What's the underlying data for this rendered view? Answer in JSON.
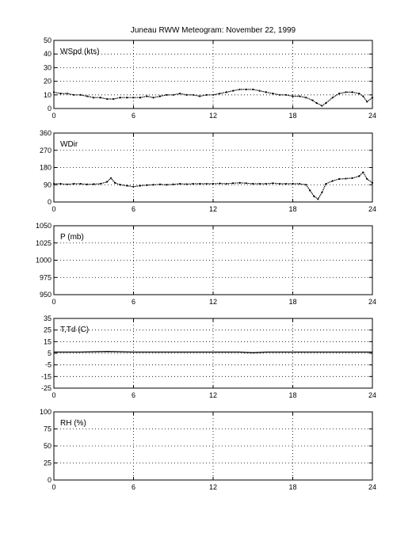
{
  "title": "Juneau RWW Meteogram:  November 22, 1999",
  "chart_data": [
    {
      "type": "scatter",
      "label": "WSpd (kts)",
      "xlim": [
        0,
        24
      ],
      "ylim": [
        0,
        50
      ],
      "xticks": [
        0,
        6,
        12,
        18,
        24
      ],
      "yticks": [
        0,
        10,
        20,
        30,
        40,
        50
      ],
      "grid": true,
      "series": [
        {
          "x": [
            0,
            0.5,
            1,
            1.5,
            2,
            2.5,
            3,
            3.5,
            4,
            4.5,
            5,
            5.5,
            6,
            6.5,
            7,
            7.5,
            8,
            8.5,
            9,
            9.5,
            10,
            10.5,
            11,
            11.5,
            12,
            12.5,
            13,
            13.5,
            14,
            14.5,
            15,
            15.5,
            16,
            16.5,
            17,
            17.5,
            18,
            18.5,
            19,
            19.5,
            19.8,
            20.2,
            20.5,
            21,
            21.5,
            22,
            22.5,
            23,
            23.3,
            23.6,
            24
          ],
          "y": [
            12,
            11,
            11,
            10,
            10,
            9,
            8,
            8,
            7,
            7,
            8,
            8,
            8,
            8,
            9,
            8,
            9,
            10,
            10,
            11,
            10,
            10,
            9,
            10,
            10,
            11,
            12,
            13,
            14,
            14,
            14,
            13,
            12,
            11,
            10,
            10,
            9,
            9,
            8,
            6,
            4,
            2,
            4,
            8,
            11,
            12,
            12,
            11,
            9,
            5,
            8
          ]
        }
      ]
    },
    {
      "type": "scatter",
      "label": "WDir",
      "xlim": [
        0,
        24
      ],
      "ylim": [
        0,
        360
      ],
      "xticks": [
        0,
        6,
        12,
        18,
        24
      ],
      "yticks": [
        0,
        90,
        180,
        270,
        360
      ],
      "grid": true,
      "series": [
        {
          "x": [
            0,
            0.5,
            1,
            1.5,
            2,
            2.5,
            3,
            3.5,
            4,
            4.3,
            4.6,
            5,
            5.5,
            6,
            6.5,
            7,
            7.5,
            8,
            8.5,
            9,
            9.5,
            10,
            10.5,
            11,
            11.5,
            12,
            12.5,
            13,
            13.5,
            14,
            14.5,
            15,
            15.5,
            16,
            16.5,
            17,
            17.5,
            18,
            18.5,
            19,
            19.3,
            19.6,
            19.9,
            20.2,
            20.5,
            21,
            21.5,
            22,
            22.5,
            23,
            23.3,
            23.6,
            24
          ],
          "y": [
            95,
            95,
            92,
            95,
            95,
            92,
            93,
            95,
            105,
            125,
            100,
            90,
            85,
            80,
            85,
            88,
            90,
            92,
            90,
            92,
            95,
            93,
            95,
            95,
            95,
            95,
            97,
            95,
            98,
            100,
            98,
            95,
            95,
            95,
            98,
            95,
            95,
            95,
            95,
            90,
            60,
            30,
            15,
            50,
            95,
            110,
            120,
            122,
            125,
            135,
            155,
            120,
            100
          ]
        }
      ]
    },
    {
      "type": "scatter",
      "label": "P (mb)",
      "xlim": [
        0,
        24
      ],
      "ylim": [
        950,
        1050
      ],
      "xticks": [
        0,
        6,
        12,
        18,
        24
      ],
      "yticks": [
        950,
        975,
        1000,
        1025,
        1050
      ],
      "grid": true,
      "series": []
    },
    {
      "type": "line",
      "label": "T,Td (C)",
      "xlim": [
        0,
        24
      ],
      "ylim": [
        -25,
        35
      ],
      "xticks": [
        0,
        6,
        12,
        18,
        24
      ],
      "yticks": [
        -25,
        -15,
        -5,
        5,
        15,
        25,
        35
      ],
      "grid": true,
      "series": [
        {
          "x": [
            0,
            2,
            4,
            6,
            8,
            10,
            12,
            14,
            15,
            16,
            18,
            20,
            22,
            24
          ],
          "y": [
            6,
            6,
            6.5,
            6,
            6,
            6,
            6,
            6,
            5.5,
            6,
            6,
            6,
            6,
            6
          ]
        }
      ]
    },
    {
      "type": "scatter",
      "label": "RH (%)",
      "xlim": [
        0,
        24
      ],
      "ylim": [
        0,
        100
      ],
      "xticks": [
        0,
        6,
        12,
        18,
        24
      ],
      "yticks": [
        0,
        25,
        50,
        75,
        100
      ],
      "grid": true,
      "series": []
    }
  ]
}
